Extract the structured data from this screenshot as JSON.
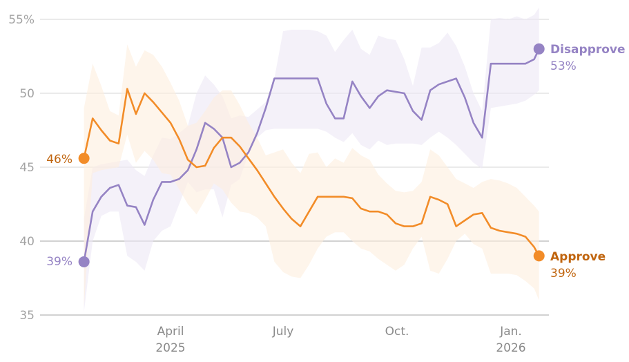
{
  "chart_data": {
    "type": "line",
    "title": "",
    "xlabel": "",
    "ylabel": "",
    "ylim": [
      35,
      55
    ],
    "y_ticks": [
      "55%",
      "50",
      "45",
      "40",
      "35"
    ],
    "y_tick_values": [
      55,
      50,
      45,
      40,
      35
    ],
    "x_ticks": [
      {
        "date": "2025-04-01",
        "label": "April",
        "sublabel": "2025"
      },
      {
        "date": "2025-07-01",
        "label": "July",
        "sublabel": ""
      },
      {
        "date": "2025-10-01",
        "label": "Oct.",
        "sublabel": ""
      },
      {
        "date": "2026-01-01",
        "label": "Jan.",
        "sublabel": "2026"
      }
    ],
    "grid": true,
    "legend": "direct labels at line ends",
    "dates": [
      "2025-01-21",
      "2025-01-28",
      "2025-02-04",
      "2025-02-11",
      "2025-02-18",
      "2025-02-25",
      "2025-03-04",
      "2025-03-11",
      "2025-03-18",
      "2025-03-25",
      "2025-04-01",
      "2025-04-08",
      "2025-04-15",
      "2025-04-22",
      "2025-04-29",
      "2025-05-06",
      "2025-05-13",
      "2025-05-20",
      "2025-05-27",
      "2025-06-03",
      "2025-06-10",
      "2025-06-17",
      "2025-06-24",
      "2025-07-01",
      "2025-07-08",
      "2025-07-15",
      "2025-07-22",
      "2025-07-29",
      "2025-08-05",
      "2025-08-12",
      "2025-08-19",
      "2025-08-26",
      "2025-09-02",
      "2025-09-09",
      "2025-09-16",
      "2025-09-23",
      "2025-09-30",
      "2025-10-07",
      "2025-10-14",
      "2025-10-21",
      "2025-10-28",
      "2025-11-04",
      "2025-11-11",
      "2025-11-18",
      "2025-11-25",
      "2025-12-02",
      "2025-12-09",
      "2025-12-16",
      "2025-12-23",
      "2025-12-30",
      "2026-01-06",
      "2026-01-13",
      "2026-01-20",
      "2026-01-24"
    ],
    "series": [
      {
        "name": "Disapprove",
        "color": "#9583c4",
        "band_color": "#ece8f5",
        "start_label": "39%",
        "end_label": "53%",
        "values": [
          38.6,
          42.0,
          43.0,
          43.6,
          43.8,
          42.4,
          42.3,
          41.1,
          42.8,
          44.0,
          44.0,
          44.2,
          44.8,
          46.2,
          48.0,
          47.6,
          47.0,
          45.0,
          45.3,
          46.0,
          47.3,
          49.0,
          51.0,
          51.0,
          51.0,
          51.0,
          51.0,
          51.0,
          49.3,
          48.3,
          48.3,
          50.8,
          49.8,
          49.0,
          49.8,
          50.2,
          50.1,
          50.0,
          48.8,
          48.2,
          50.2,
          50.6,
          50.8,
          51.0,
          49.7,
          48.0,
          47.0,
          52.0,
          52.0,
          52.0,
          52.0,
          52.0,
          52.3,
          53.0
        ],
        "upper": [
          41.5,
          45.0,
          45.2,
          45.3,
          45.4,
          45.5,
          44.8,
          44.4,
          45.8,
          47.0,
          46.9,
          47.3,
          47.8,
          50.0,
          51.2,
          50.6,
          49.8,
          48.3,
          48.5,
          48.4,
          48.9,
          49.4,
          51.0,
          54.2,
          54.3,
          54.3,
          54.3,
          54.2,
          53.9,
          52.8,
          53.6,
          54.3,
          53.0,
          52.6,
          53.9,
          53.7,
          53.6,
          52.3,
          50.5,
          53.1,
          53.1,
          53.4,
          54.1,
          53.2,
          51.8,
          50.0,
          48.8,
          55.0,
          55.1,
          55.0,
          55.2,
          55.0,
          55.3,
          55.8
        ],
        "lower": [
          35.2,
          40.0,
          41.7,
          42.0,
          42.0,
          39.0,
          38.6,
          38.0,
          40.0,
          40.7,
          41.0,
          42.5,
          44.0,
          43.3,
          43.5,
          43.5,
          41.6,
          43.8,
          44.2,
          45.9,
          47.0,
          47.5,
          47.6,
          47.6,
          47.6,
          47.6,
          47.6,
          47.6,
          47.4,
          47.0,
          46.7,
          47.3,
          46.5,
          46.2,
          46.8,
          46.5,
          46.6,
          46.6,
          46.6,
          46.5,
          47.0,
          47.4,
          47.0,
          46.5,
          45.9,
          45.3,
          44.9,
          49.0,
          49.1,
          49.2,
          49.3,
          49.5,
          49.9,
          50.2
        ]
      },
      {
        "name": "Approve",
        "color": "#f28c28",
        "label_color": "#c0650f",
        "band_color": "#fdeedd",
        "start_label": "46%",
        "end_label": "39%",
        "values": [
          45.6,
          48.3,
          47.5,
          46.8,
          46.6,
          50.3,
          48.6,
          50.0,
          49.4,
          48.7,
          48.0,
          46.9,
          45.5,
          45.0,
          45.1,
          46.3,
          47.0,
          47.0,
          46.4,
          45.6,
          44.8,
          43.9,
          43.0,
          42.2,
          41.5,
          41.0,
          42.0,
          43.0,
          43.0,
          43.0,
          43.0,
          42.9,
          42.2,
          42.0,
          42.0,
          41.8,
          41.2,
          41.0,
          41.0,
          41.2,
          43.0,
          42.8,
          42.5,
          41.0,
          41.4,
          41.8,
          41.9,
          40.9,
          40.7,
          40.6,
          40.5,
          40.3,
          39.6,
          39.0
        ],
        "upper": [
          49.0,
          52.0,
          50.5,
          48.8,
          48.5,
          53.3,
          51.8,
          52.9,
          52.6,
          51.8,
          50.7,
          49.5,
          47.8,
          48.0,
          48.8,
          49.7,
          50.2,
          50.2,
          49.2,
          48.0,
          47.0,
          45.8,
          46.0,
          46.2,
          45.3,
          44.6,
          45.9,
          46.0,
          45.0,
          45.6,
          45.3,
          46.3,
          45.8,
          45.5,
          44.5,
          43.9,
          43.4,
          43.3,
          43.4,
          44.0,
          46.2,
          45.8,
          45.0,
          44.2,
          43.9,
          43.6,
          44.0,
          44.2,
          44.1,
          43.9,
          43.6,
          43.0,
          42.4,
          42.0
        ],
        "lower": [
          35.5,
          44.6,
          44.8,
          44.9,
          45.0,
          47.2,
          45.3,
          46.1,
          45.5,
          44.6,
          44.5,
          43.5,
          42.5,
          41.8,
          42.8,
          43.9,
          43.5,
          42.6,
          42.0,
          41.9,
          41.6,
          41.0,
          38.6,
          37.9,
          37.6,
          37.5,
          38.4,
          39.5,
          40.3,
          40.6,
          40.6,
          40.0,
          39.5,
          39.3,
          38.8,
          38.4,
          38.0,
          38.4,
          39.5,
          40.3,
          38.0,
          37.8,
          38.8,
          40.0,
          40.5,
          39.8,
          39.5,
          37.8,
          37.8,
          37.8,
          37.7,
          37.3,
          36.8,
          36.0
        ]
      }
    ]
  }
}
